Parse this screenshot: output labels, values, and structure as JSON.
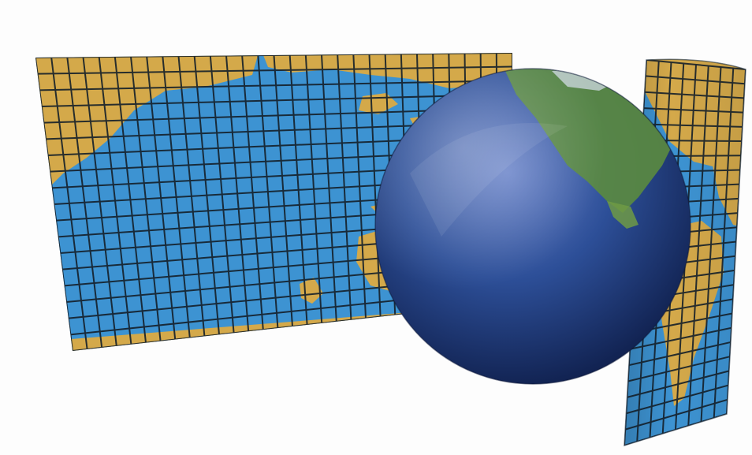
{
  "scene": {
    "subject": "globe-in-cylinder-projection-icon",
    "colors": {
      "background": "#ffffff",
      "ocean": "#3d93d2",
      "land": "#d4a94a",
      "grid": "#15202a",
      "globe_dark": "#0c1a44",
      "globe_mid": "#2d4f98",
      "globe_light": "#5d7cc2",
      "globe_land": "#5b8b3f"
    }
  }
}
